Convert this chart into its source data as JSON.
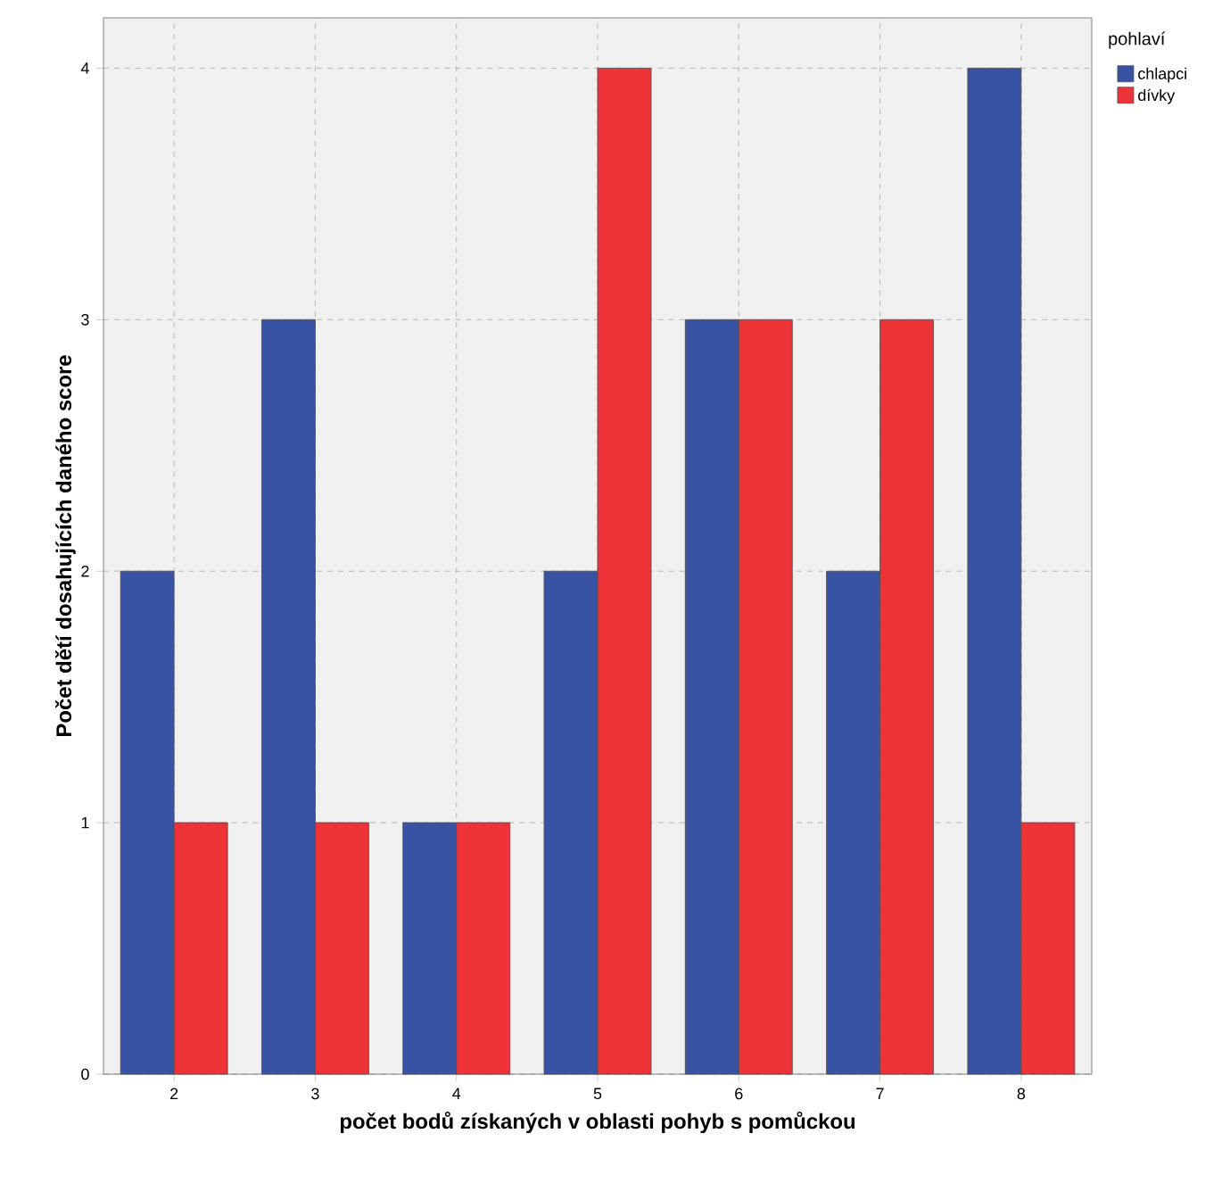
{
  "chart_data": {
    "type": "bar",
    "xlabel": "počet bodů získaných v oblasti pohyb s pomůckou",
    "ylabel": "Počet dětí dosahujících daného score",
    "legend_title": "pohlaví",
    "categories": [
      "2",
      "3",
      "4",
      "5",
      "6",
      "7",
      "8"
    ],
    "series": [
      {
        "name": "chlapci",
        "color": "#3953a4",
        "values": [
          2,
          3,
          1,
          2,
          3,
          2,
          4
        ]
      },
      {
        "name": "dívky",
        "color": "#ee3338",
        "values": [
          1,
          1,
          1,
          4,
          3,
          3,
          1
        ]
      }
    ],
    "ylim": [
      0,
      4.2
    ],
    "yticks": [
      0,
      1,
      2,
      3,
      4
    ],
    "grid": true,
    "legend": "top right"
  }
}
